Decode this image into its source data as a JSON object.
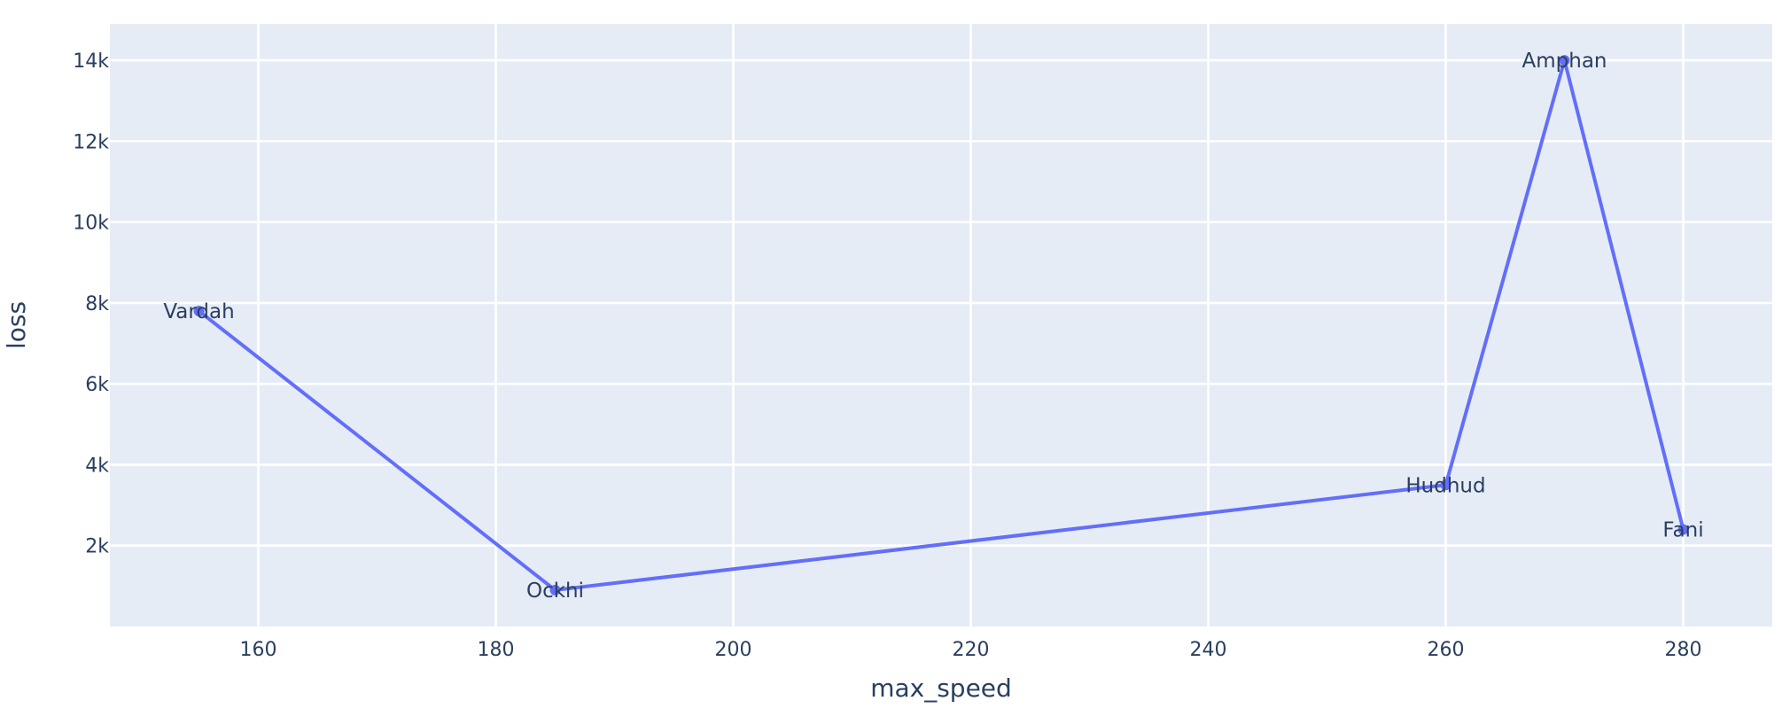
{
  "chart_data": {
    "type": "line",
    "mode": "lines+markers+text",
    "xlabel": "max_speed",
    "ylabel": "loss",
    "xlim": [
      147.5,
      287.5
    ],
    "ylim": [
      0,
      14900
    ],
    "x_ticks": [
      160,
      180,
      200,
      220,
      240,
      260,
      280
    ],
    "y_ticks": [
      2000,
      4000,
      6000,
      8000,
      10000,
      12000,
      14000
    ],
    "x_tick_labels": [
      "160",
      "180",
      "200",
      "220",
      "240",
      "260",
      "280"
    ],
    "y_tick_labels": [
      "2k",
      "4k",
      "6k",
      "8k",
      "10k",
      "12k",
      "14k"
    ],
    "grid": true,
    "legend": false,
    "colors": {
      "line": "#636efa",
      "plot_background": "#e5ecf6",
      "grid": "#ffffff",
      "text": "#2a3f5f"
    },
    "series": [
      {
        "labels": [
          "Vardah",
          "Ockhi",
          "Hudhud",
          "Amphan",
          "Fani"
        ],
        "x": [
          155,
          185,
          260,
          270,
          280
        ],
        "y": [
          7800,
          900,
          3500,
          14000,
          2400
        ]
      }
    ]
  }
}
